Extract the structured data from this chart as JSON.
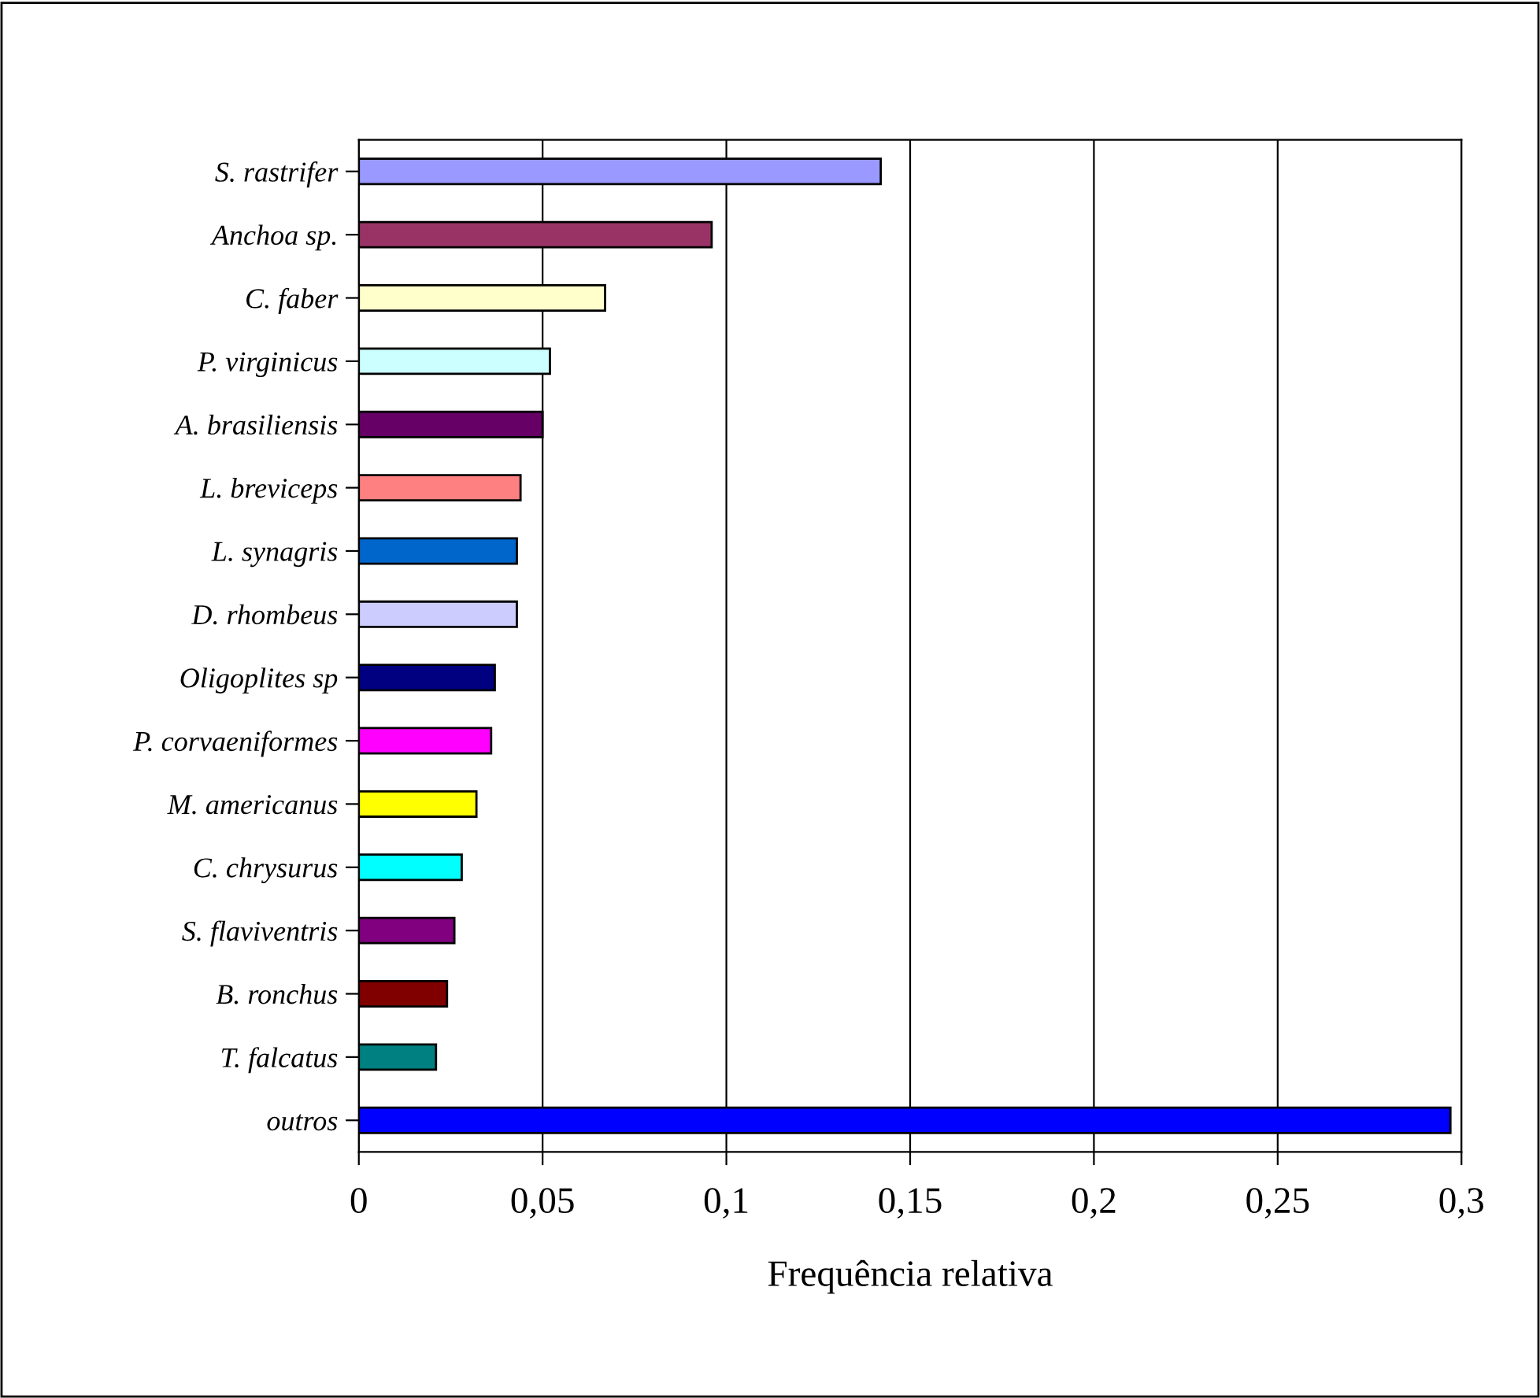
{
  "chart_data": {
    "type": "bar",
    "orientation": "horizontal",
    "xlabel": "Frequência relativa",
    "categories": [
      "S. rastrifer",
      "Anchoa sp.",
      "C. faber",
      "P. virginicus",
      "A. brasiliensis",
      "L. breviceps",
      "L. synagris",
      "D. rhombeus",
      "Oligoplites sp",
      "P. corvaeniformes",
      "M. americanus",
      "C. chrysurus",
      "S. flaviventris",
      "B. ronchus",
      "T. falcatus",
      "outros"
    ],
    "values": [
      0.142,
      0.096,
      0.067,
      0.052,
      0.05,
      0.044,
      0.043,
      0.043,
      0.037,
      0.036,
      0.032,
      0.028,
      0.026,
      0.024,
      0.021,
      0.297
    ],
    "colors": [
      "#9999ff",
      "#993366",
      "#ffffcc",
      "#ccffff",
      "#660066",
      "#ff8080",
      "#0066cc",
      "#ccccff",
      "#000080",
      "#ff00ff",
      "#ffff00",
      "#00ffff",
      "#800080",
      "#800000",
      "#008080",
      "#0000ff"
    ],
    "xlim": [
      0,
      0.3
    ],
    "xticks": [
      {
        "value": 0,
        "label": "0"
      },
      {
        "value": 0.05,
        "label": "0,05"
      },
      {
        "value": 0.1,
        "label": "0,1"
      },
      {
        "value": 0.15,
        "label": "0,15"
      },
      {
        "value": 0.2,
        "label": "0,2"
      },
      {
        "value": 0.25,
        "label": "0,25"
      },
      {
        "value": 0.3,
        "label": "0,3"
      }
    ],
    "grid": "x"
  }
}
